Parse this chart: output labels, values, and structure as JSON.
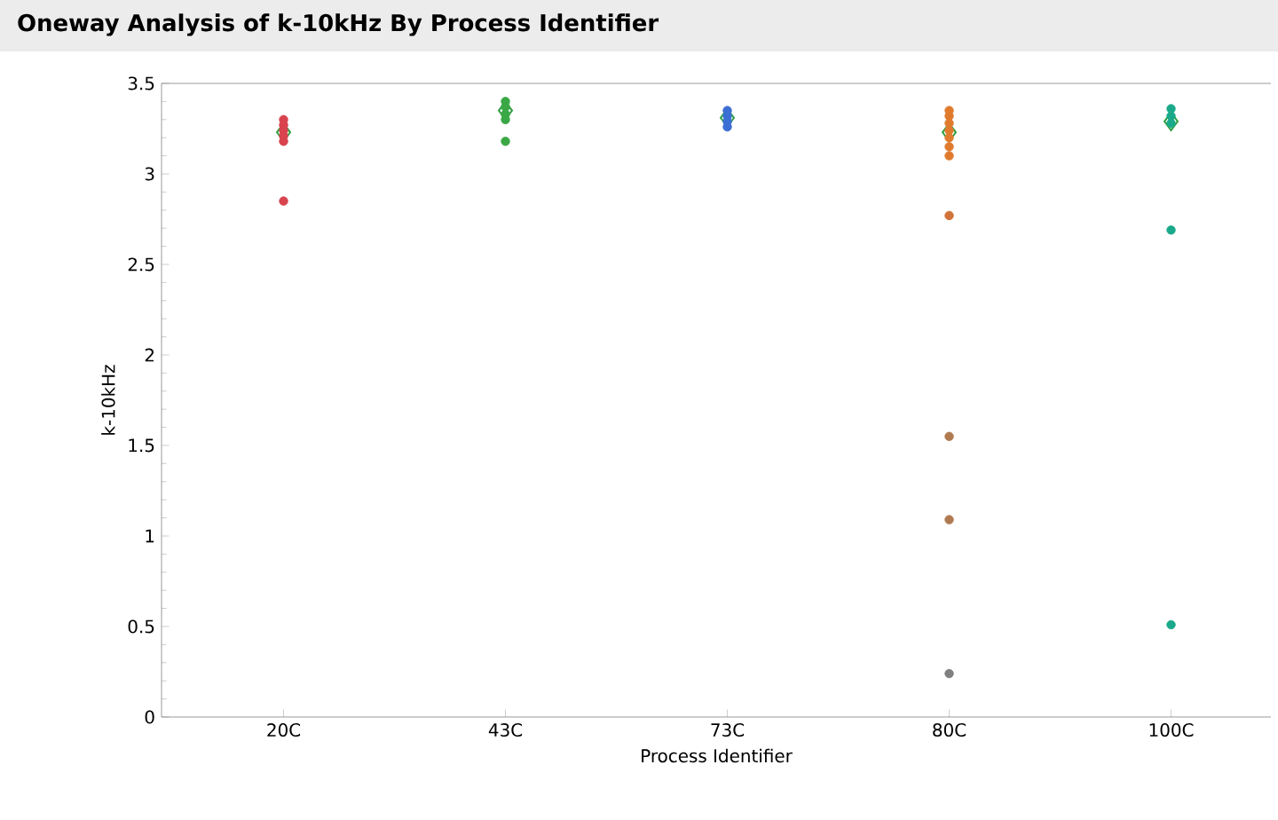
{
  "chart_data": {
    "type": "scatter",
    "title": "Oneway Analysis of k-10kHz By Process Identifier",
    "xlabel": "Process Identifier",
    "ylabel": "k-10kHz",
    "categories": [
      "20C",
      "43C",
      "73C",
      "80C",
      "100C"
    ],
    "ylim": [
      0,
      3.5
    ],
    "yticks": [
      0,
      0.5,
      1,
      1.5,
      2,
      2.5,
      3,
      3.5
    ],
    "grid": false,
    "series": [
      {
        "x": [
          "20C",
          "20C",
          "20C",
          "20C",
          "20C",
          "20C"
        ],
        "values": [
          3.3,
          3.27,
          3.24,
          3.21,
          3.18,
          2.85
        ],
        "color": "#d9434e",
        "marker": "circle"
      },
      {
        "x": [
          "43C",
          "43C",
          "43C",
          "43C",
          "43C"
        ],
        "values": [
          3.4,
          3.37,
          3.33,
          3.3,
          3.18
        ],
        "color": "#3aa845",
        "marker": "circle"
      },
      {
        "x": [
          "73C",
          "73C",
          "73C",
          "73C"
        ],
        "values": [
          3.35,
          3.32,
          3.29,
          3.26
        ],
        "color": "#3b6fd4",
        "marker": "circle"
      },
      {
        "x": [
          "80C",
          "80C",
          "80C",
          "80C",
          "80C",
          "80C",
          "80C",
          "80C",
          "80C",
          "80C",
          "80C"
        ],
        "values": [
          3.35,
          3.32,
          3.28,
          3.24,
          3.2,
          3.15,
          3.1,
          2.77,
          1.55,
          1.09,
          0.24
        ],
        "colors": [
          "#e07b2e",
          "#e07b2e",
          "#e07b2e",
          "#e07b2e",
          "#e07b2e",
          "#e07b2e",
          "#e07b2e",
          "#d2743a",
          "#b07a50",
          "#b07a50",
          "#808080"
        ],
        "marker": "circle"
      },
      {
        "x": [
          "100C",
          "100C",
          "100C",
          "100C",
          "100C"
        ],
        "values": [
          3.36,
          3.32,
          3.28,
          2.69,
          0.51
        ],
        "color": "#1aa98a",
        "marker": "circle"
      },
      {
        "x": [
          "20C",
          "43C",
          "73C",
          "80C",
          "100C"
        ],
        "values": [
          3.23,
          3.35,
          3.31,
          3.23,
          3.29
        ],
        "color": "#2e9e3e",
        "marker": "diamond"
      }
    ]
  }
}
